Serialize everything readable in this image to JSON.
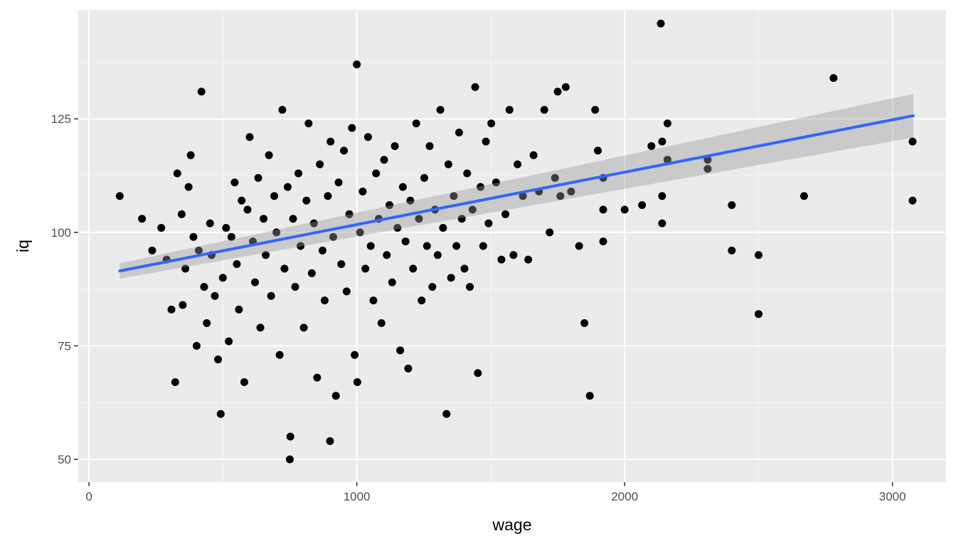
{
  "chart_data": {
    "type": "scatter",
    "title": "",
    "xlabel": "wage",
    "ylabel": "iq",
    "xlim": [
      -40,
      3200
    ],
    "ylim": [
      45,
      149
    ],
    "x_ticks": [
      0,
      1000,
      2000,
      3000
    ],
    "y_ticks": [
      50,
      75,
      100,
      125
    ],
    "x_tick_labels": [
      "0",
      "1000",
      "2000",
      "3000"
    ],
    "y_tick_labels": [
      "50",
      "75",
      "100",
      "125"
    ],
    "grid": true,
    "legend": "none",
    "colors": {
      "panel_background": "#ebebeb",
      "grid_major": "#ffffff",
      "grid_minor": "#f5f5f5",
      "points": "#000000",
      "fit_line": "#3366ff",
      "confidence_band": "#999999"
    },
    "fit_line": {
      "x": [
        115,
        3078
      ],
      "y": [
        91.5,
        125.7
      ],
      "ci_lower": [
        89.8,
        120.9
      ],
      "ci_upper": [
        93.2,
        130.5
      ]
    },
    "points": [
      [
        115,
        108
      ],
      [
        198,
        103
      ],
      [
        236,
        96
      ],
      [
        270,
        101
      ],
      [
        290,
        94
      ],
      [
        308,
        83
      ],
      [
        322,
        67
      ],
      [
        330,
        113
      ],
      [
        346,
        104
      ],
      [
        350,
        84
      ],
      [
        360,
        92
      ],
      [
        372,
        110
      ],
      [
        380,
        117
      ],
      [
        390,
        99
      ],
      [
        402,
        75
      ],
      [
        410,
        96
      ],
      [
        420,
        131
      ],
      [
        430,
        88
      ],
      [
        440,
        80
      ],
      [
        452,
        102
      ],
      [
        458,
        95
      ],
      [
        470,
        86
      ],
      [
        482,
        72
      ],
      [
        492,
        60
      ],
      [
        500,
        90
      ],
      [
        512,
        101
      ],
      [
        522,
        76
      ],
      [
        532,
        99
      ],
      [
        544,
        111
      ],
      [
        552,
        93
      ],
      [
        560,
        83
      ],
      [
        570,
        107
      ],
      [
        580,
        67
      ],
      [
        592,
        105
      ],
      [
        600,
        121
      ],
      [
        612,
        98
      ],
      [
        620,
        89
      ],
      [
        632,
        112
      ],
      [
        640,
        79
      ],
      [
        652,
        103
      ],
      [
        660,
        95
      ],
      [
        672,
        117
      ],
      [
        680,
        86
      ],
      [
        692,
        108
      ],
      [
        700,
        100
      ],
      [
        712,
        73
      ],
      [
        722,
        127
      ],
      [
        730,
        92
      ],
      [
        742,
        110
      ],
      [
        750,
        50
      ],
      [
        752,
        55
      ],
      [
        762,
        103
      ],
      [
        770,
        88
      ],
      [
        782,
        113
      ],
      [
        790,
        97
      ],
      [
        802,
        79
      ],
      [
        812,
        107
      ],
      [
        820,
        124
      ],
      [
        832,
        91
      ],
      [
        840,
        102
      ],
      [
        852,
        68
      ],
      [
        862,
        115
      ],
      [
        872,
        96
      ],
      [
        880,
        85
      ],
      [
        892,
        108
      ],
      [
        900,
        54
      ],
      [
        902,
        120
      ],
      [
        912,
        99
      ],
      [
        922,
        64
      ],
      [
        932,
        111
      ],
      [
        942,
        93
      ],
      [
        952,
        118
      ],
      [
        962,
        87
      ],
      [
        972,
        104
      ],
      [
        982,
        123
      ],
      [
        992,
        73
      ],
      [
        1000,
        137
      ],
      [
        1002,
        67
      ],
      [
        1012,
        100
      ],
      [
        1022,
        109
      ],
      [
        1032,
        92
      ],
      [
        1042,
        121
      ],
      [
        1052,
        97
      ],
      [
        1062,
        85
      ],
      [
        1072,
        113
      ],
      [
        1082,
        103
      ],
      [
        1092,
        80
      ],
      [
        1102,
        116
      ],
      [
        1112,
        95
      ],
      [
        1122,
        106
      ],
      [
        1132,
        89
      ],
      [
        1142,
        119
      ],
      [
        1152,
        101
      ],
      [
        1162,
        74
      ],
      [
        1172,
        110
      ],
      [
        1182,
        98
      ],
      [
        1192,
        70
      ],
      [
        1200,
        107
      ],
      [
        1210,
        92
      ],
      [
        1222,
        124
      ],
      [
        1232,
        103
      ],
      [
        1242,
        85
      ],
      [
        1252,
        112
      ],
      [
        1262,
        97
      ],
      [
        1272,
        119
      ],
      [
        1282,
        88
      ],
      [
        1292,
        105
      ],
      [
        1302,
        95
      ],
      [
        1312,
        127
      ],
      [
        1322,
        101
      ],
      [
        1335,
        60
      ],
      [
        1342,
        115
      ],
      [
        1352,
        90
      ],
      [
        1362,
        108
      ],
      [
        1372,
        97
      ],
      [
        1382,
        122
      ],
      [
        1392,
        103
      ],
      [
        1402,
        92
      ],
      [
        1412,
        113
      ],
      [
        1422,
        88
      ],
      [
        1432,
        105
      ],
      [
        1442,
        132
      ],
      [
        1452,
        69
      ],
      [
        1462,
        110
      ],
      [
        1472,
        97
      ],
      [
        1482,
        120
      ],
      [
        1492,
        102
      ],
      [
        1502,
        124
      ],
      [
        1520,
        111
      ],
      [
        1540,
        94
      ],
      [
        1555,
        104
      ],
      [
        1570,
        127
      ],
      [
        1585,
        95
      ],
      [
        1600,
        115
      ],
      [
        1620,
        108
      ],
      [
        1640,
        94
      ],
      [
        1660,
        117
      ],
      [
        1680,
        109
      ],
      [
        1700,
        127
      ],
      [
        1720,
        100
      ],
      [
        1740,
        112
      ],
      [
        1750,
        131
      ],
      [
        1760,
        108
      ],
      [
        1780,
        132
      ],
      [
        1800,
        109
      ],
      [
        1830,
        97
      ],
      [
        1850,
        80
      ],
      [
        1870,
        64
      ],
      [
        1890,
        127
      ],
      [
        1900,
        118
      ],
      [
        1920,
        112
      ],
      [
        1920,
        98
      ],
      [
        1920,
        105
      ],
      [
        2000,
        105
      ],
      [
        2065,
        106
      ],
      [
        2100,
        119
      ],
      [
        2135,
        146
      ],
      [
        2140,
        102
      ],
      [
        2140,
        108
      ],
      [
        2140,
        120
      ],
      [
        2160,
        116
      ],
      [
        2160,
        124
      ],
      [
        2310,
        116
      ],
      [
        2310,
        114
      ],
      [
        2400,
        106
      ],
      [
        2400,
        96
      ],
      [
        2500,
        95
      ],
      [
        2500,
        82
      ],
      [
        2670,
        108
      ],
      [
        2780,
        134
      ],
      [
        3075,
        120
      ],
      [
        3075,
        107
      ]
    ]
  }
}
